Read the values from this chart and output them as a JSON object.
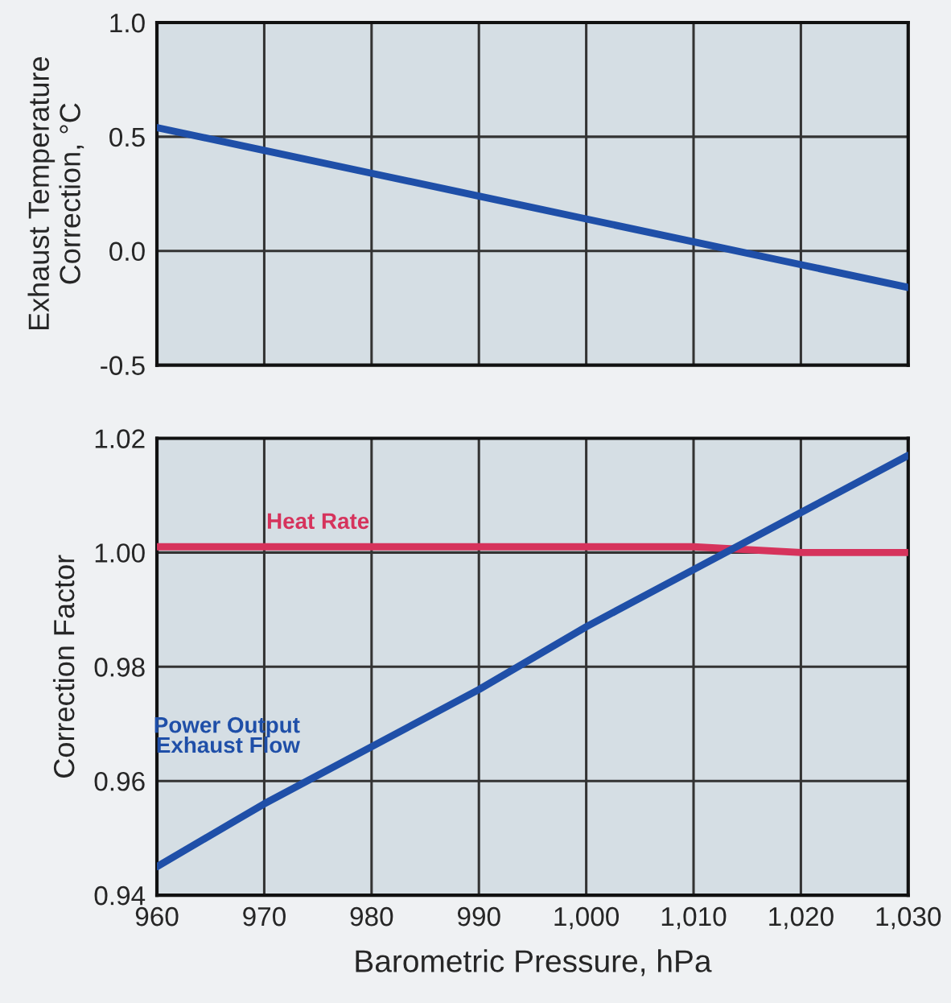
{
  "chart_data": [
    {
      "type": "line",
      "ylabel": "Exhaust Temperature\nCorrection, °C",
      "x": [
        960,
        970,
        980,
        990,
        1000,
        1010,
        1020,
        1030
      ],
      "series": [
        {
          "color": "#1f4fa8",
          "values": [
            0.54,
            0.44,
            0.34,
            0.24,
            0.14,
            0.04,
            -0.06,
            -0.16
          ]
        }
      ],
      "xlim": [
        960,
        1030
      ],
      "xticks": [
        960,
        970,
        980,
        990,
        1000,
        1010,
        1020,
        1030
      ],
      "ylim": [
        -0.5,
        1.0
      ],
      "yticks": [
        {
          "value": -0.5,
          "label": "-0.5"
        },
        {
          "value": 0.0,
          "label": "0.0"
        },
        {
          "value": 0.5,
          "label": "0.5"
        },
        {
          "value": 1.0,
          "label": "1.0"
        }
      ],
      "tick_labels": "y",
      "grid": true,
      "legend": false,
      "marker": "none",
      "line_style": "solid"
    },
    {
      "type": "line",
      "xlabel": "Barometric Pressure, hPa",
      "ylabel": "Correction Factor",
      "x": [
        960,
        970,
        980,
        990,
        1000,
        1010,
        1020,
        1030
      ],
      "series": [
        {
          "name": "Heat Rate",
          "color": "#d6335c",
          "values": [
            1.001,
            1.001,
            1.001,
            1.001,
            1.001,
            1.001,
            1.0,
            1.0
          ]
        },
        {
          "name": "Power Output\nExhaust Flow",
          "color": "#1f4fa8",
          "values": [
            0.945,
            0.956,
            0.966,
            0.976,
            0.987,
            0.997,
            1.007,
            1.017
          ]
        }
      ],
      "xlim": [
        960,
        1030
      ],
      "xticks": [
        {
          "value": 960,
          "label": "960"
        },
        {
          "value": 970,
          "label": "970"
        },
        {
          "value": 980,
          "label": "980"
        },
        {
          "value": 990,
          "label": "990"
        },
        {
          "value": 1000,
          "label": "1,000"
        },
        {
          "value": 1010,
          "label": "1,010"
        },
        {
          "value": 1020,
          "label": "1,020"
        },
        {
          "value": 1030,
          "label": "1,030"
        }
      ],
      "ylim": [
        0.94,
        1.02
      ],
      "yticks": [
        0.94,
        0.96,
        0.98,
        {
          "value": 1.0,
          "label": "1.00"
        },
        1.02
      ],
      "grid": true,
      "legend": false,
      "marker": "none",
      "line_style": "solid"
    }
  ]
}
